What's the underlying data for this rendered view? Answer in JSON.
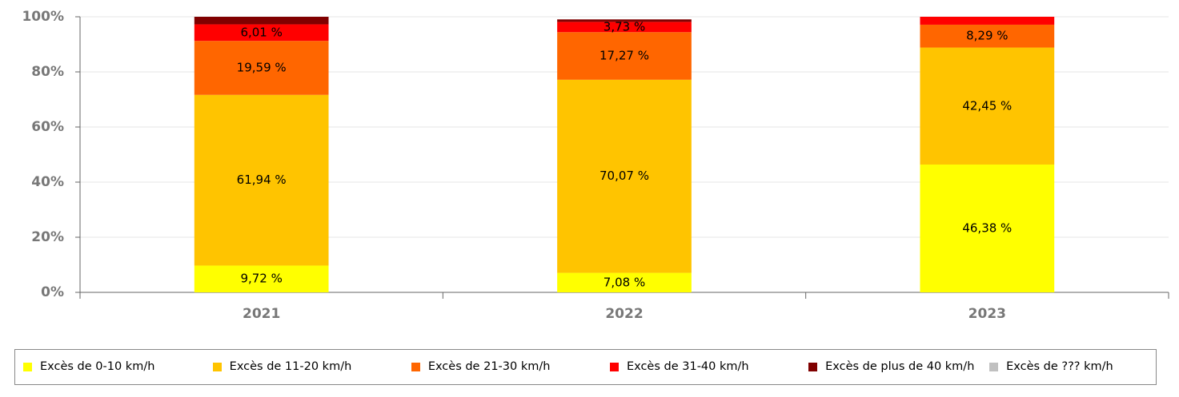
{
  "chart_data": {
    "type": "stacked_bar",
    "categories": [
      "2021",
      "2022",
      "2023"
    ],
    "series": [
      {
        "name": "Excès de 0-10 km/h",
        "color": "#ffff00",
        "values": [
          9.72,
          7.08,
          46.38
        ],
        "value_labels": [
          "9,72 %",
          "7,08 %",
          "46,38 %"
        ]
      },
      {
        "name": "Excès de 11-20 km/h",
        "color": "#ffc400",
        "values": [
          61.94,
          70.07,
          42.45
        ],
        "value_labels": [
          "61,94 %",
          "70,07 %",
          "42,45 %"
        ]
      },
      {
        "name": "Excès de 21-30 km/h",
        "color": "#ff6600",
        "values": [
          19.59,
          17.27,
          8.29
        ],
        "value_labels": [
          "19,59 %",
          "17,27 %",
          "8,29 %"
        ]
      },
      {
        "name": "Excès de 31-40 km/h",
        "color": "#ff0000",
        "values": [
          6.01,
          3.73,
          2.88
        ],
        "value_labels": [
          "6,01 %",
          "3,73 %",
          null
        ]
      },
      {
        "name": "Excès de plus de 40 km/h",
        "color": "#800000",
        "values": [
          2.74,
          0.9,
          0
        ],
        "value_labels": [
          null,
          null,
          null
        ]
      },
      {
        "name": "Excès de ??? km/h",
        "color": "#c0c0c0",
        "values": [
          0,
          0,
          0
        ],
        "value_labels": [
          null,
          null,
          null
        ]
      }
    ],
    "ylim": [
      0,
      100
    ],
    "yticks": [
      {
        "value": 0,
        "label": "0%"
      },
      {
        "value": 20,
        "label": "20%"
      },
      {
        "value": 40,
        "label": "40%"
      },
      {
        "value": 60,
        "label": "60%"
      },
      {
        "value": 80,
        "label": "80%"
      },
      {
        "value": 100,
        "label": "100%"
      }
    ],
    "grid": true,
    "legend": "bottom"
  }
}
